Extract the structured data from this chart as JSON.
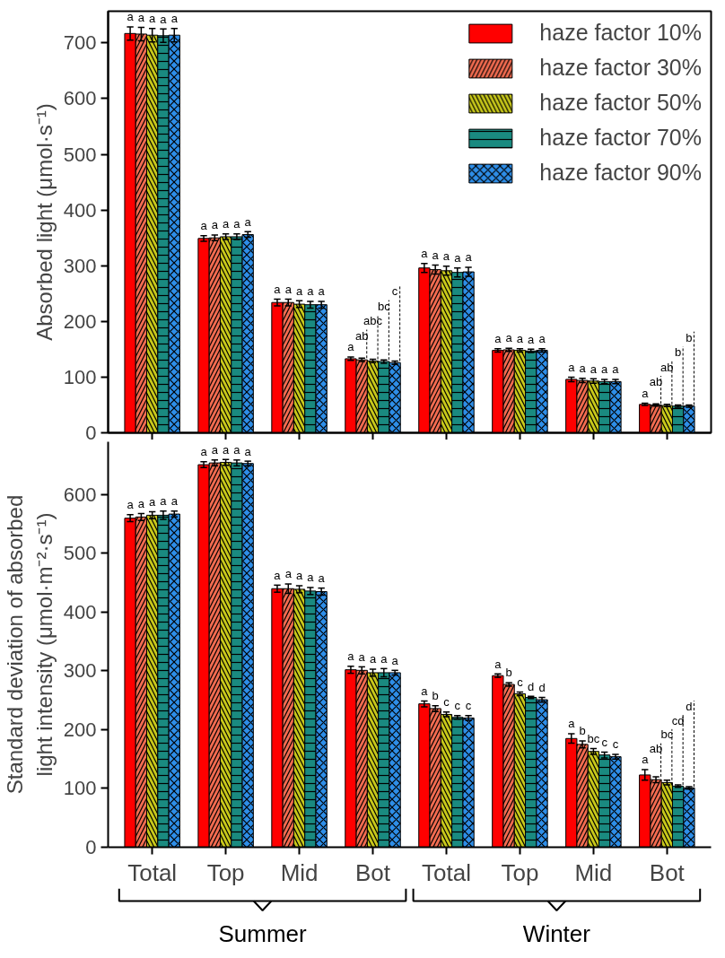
{
  "chart_data": [
    {
      "type": "bar",
      "ylabel": "Absorbed light (μmol·s⁻¹)",
      "categories": [
        null,
        null,
        null,
        null,
        null,
        null,
        null,
        null
      ],
      "ylim": [
        0,
        757
      ],
      "yticks": [
        0,
        100,
        200,
        300,
        400,
        500,
        600,
        700
      ],
      "tick_labels": "y",
      "legend": "top right",
      "grid": false,
      "series": [
        {
          "name": "haze factor 10%",
          "color": "#ff0000",
          "values": [
            717,
            349,
            234,
            133,
            296,
            148,
            96,
            51
          ],
          "errors": [
            12,
            5,
            6,
            3,
            8,
            3,
            4,
            2
          ],
          "value_labels": [
            "a",
            "a",
            "a",
            "a",
            "a",
            "a",
            "a",
            "a"
          ]
        },
        {
          "name": "haze factor 30%",
          "color": "#f26b50",
          "values": [
            716,
            350,
            234,
            131,
            293,
            149,
            94,
            50
          ],
          "errors": [
            12,
            5,
            6,
            3,
            8,
            3,
            4,
            2
          ],
          "value_labels": [
            "a",
            "a",
            "a",
            "ab",
            "a",
            "a",
            "a",
            "ab"
          ]
        },
        {
          "name": "haze factor 50%",
          "color": "#c8c81a",
          "values": [
            714,
            352,
            231,
            129,
            291,
            148,
            93,
            49
          ],
          "errors": [
            12,
            5,
            6,
            3,
            8,
            3,
            4,
            2
          ],
          "value_labels": [
            "a",
            "a",
            "a",
            "abc",
            "a",
            "a",
            "a",
            "ab"
          ]
        },
        {
          "name": "haze factor 70%",
          "color": "#1a8a80",
          "values": [
            713,
            352,
            230,
            128,
            288,
            147,
            92,
            48
          ],
          "errors": [
            12,
            5,
            6,
            3,
            8,
            3,
            4,
            2
          ],
          "value_labels": [
            "a",
            "a",
            "a",
            "bc",
            "a",
            "a",
            "a",
            "b"
          ]
        },
        {
          "name": "haze factor 90%",
          "color": "#2e8ee8",
          "values": [
            714,
            356,
            230,
            126,
            289,
            148,
            92,
            48
          ],
          "errors": [
            12,
            5,
            6,
            3,
            8,
            3,
            4,
            2
          ],
          "value_labels": [
            "a",
            "a",
            "a",
            "c",
            "a",
            "a",
            "a",
            "b"
          ]
        }
      ]
    },
    {
      "type": "bar",
      "ylabel": "Standard deviation of absorbed\nlight intensity (μmol·m⁻²·s⁻¹)",
      "categories": [
        "Total",
        "Top",
        "Mid",
        "Bot",
        "Total",
        "Top",
        "Mid",
        "Bot"
      ],
      "ylim": [
        0,
        690
      ],
      "yticks": [
        0,
        100,
        200,
        300,
        400,
        500,
        600
      ],
      "legend": false,
      "grid": false,
      "annotations": [
        "Summer",
        "Winter"
      ],
      "series": [
        {
          "color": "#ff0000",
          "values": [
            560,
            651,
            440,
            302,
            244,
            292,
            185,
            123
          ],
          "errors": [
            6,
            5,
            6,
            6,
            5,
            3,
            8,
            9
          ],
          "value_labels": [
            "a",
            "a",
            "a",
            "a",
            "a",
            "a",
            "a",
            "a"
          ]
        },
        {
          "color": "#f26b50",
          "values": [
            562,
            654,
            440,
            301,
            236,
            277,
            175,
            115
          ],
          "errors": [
            6,
            5,
            8,
            6,
            5,
            3,
            6,
            5
          ],
          "value_labels": [
            "a",
            "a",
            "a",
            "a",
            "b",
            "b",
            "b",
            "ab"
          ]
        },
        {
          "color": "#c8c81a",
          "values": [
            565,
            655,
            439,
            297,
            226,
            261,
            163,
            110
          ],
          "errors": [
            6,
            5,
            6,
            6,
            4,
            3,
            5,
            4
          ],
          "value_labels": [
            "a",
            "a",
            "a",
            "a",
            "c",
            "c",
            "bc",
            "bc"
          ]
        },
        {
          "color": "#1a8a80",
          "values": [
            565,
            654,
            436,
            297,
            221,
            255,
            157,
            104
          ],
          "errors": [
            7,
            5,
            6,
            7,
            3,
            2,
            5,
            2
          ],
          "value_labels": [
            "a",
            "a",
            "a",
            "a",
            "c",
            "d",
            "c",
            "cd"
          ]
        },
        {
          "color": "#2e8ee8",
          "values": [
            567,
            653,
            435,
            297,
            220,
            251,
            154,
            101
          ],
          "errors": [
            5,
            4,
            6,
            4,
            4,
            4,
            4,
            2
          ],
          "value_labels": [
            "a",
            "a",
            "a",
            "a",
            "c",
            "d",
            "c",
            "d"
          ]
        }
      ]
    }
  ]
}
